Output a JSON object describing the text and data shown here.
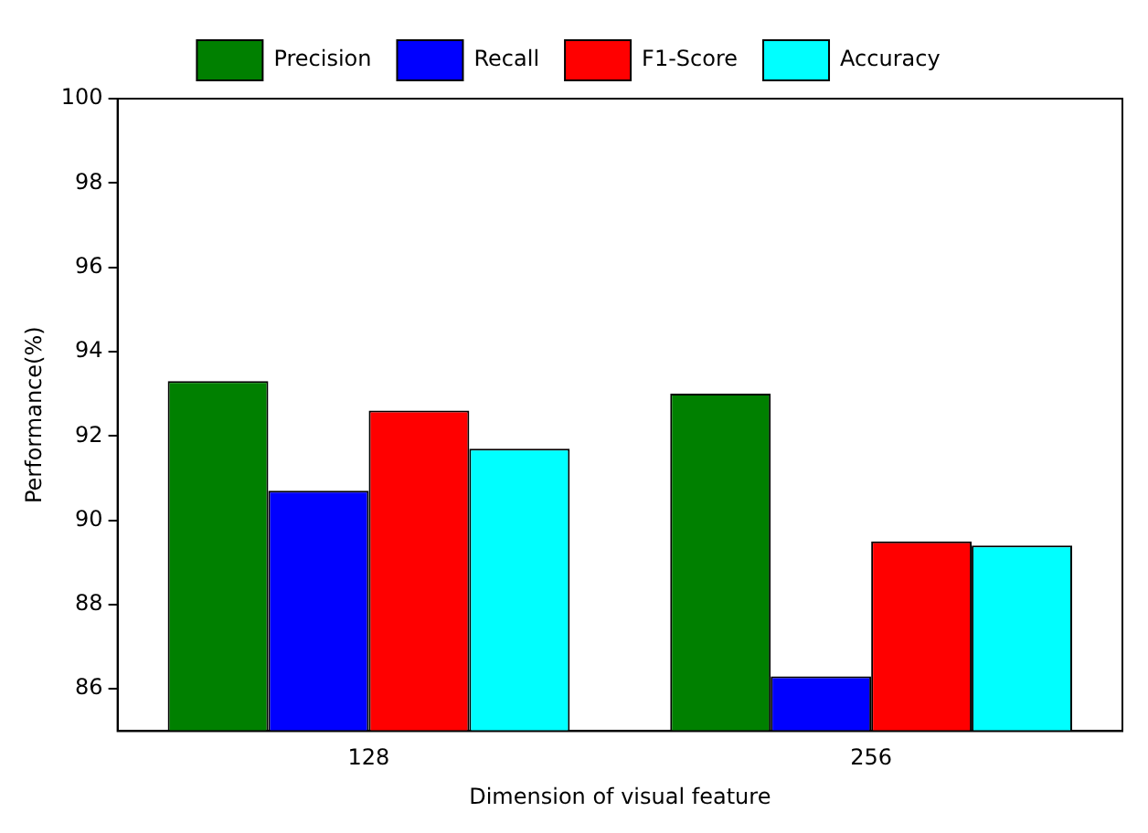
{
  "chart_data": {
    "type": "bar",
    "xlabel": "Dimension of visual feature",
    "ylabel": "Performance(%)",
    "categories": [
      "128",
      "256"
    ],
    "series": [
      {
        "name": "Precision",
        "color": "#008000",
        "values": [
          93.3,
          93.0
        ]
      },
      {
        "name": "Recall",
        "color": "#0000ff",
        "values": [
          90.7,
          86.3
        ]
      },
      {
        "name": "F1-Score",
        "color": "#ff0000",
        "values": [
          92.6,
          89.5
        ]
      },
      {
        "name": "Accuracy",
        "color": "#00ffff",
        "values": [
          91.7,
          89.4
        ]
      }
    ],
    "ylim": [
      85,
      100
    ],
    "yticks": [
      86,
      88,
      90,
      92,
      94,
      96,
      98,
      100
    ],
    "grid": false,
    "legend": "top"
  }
}
